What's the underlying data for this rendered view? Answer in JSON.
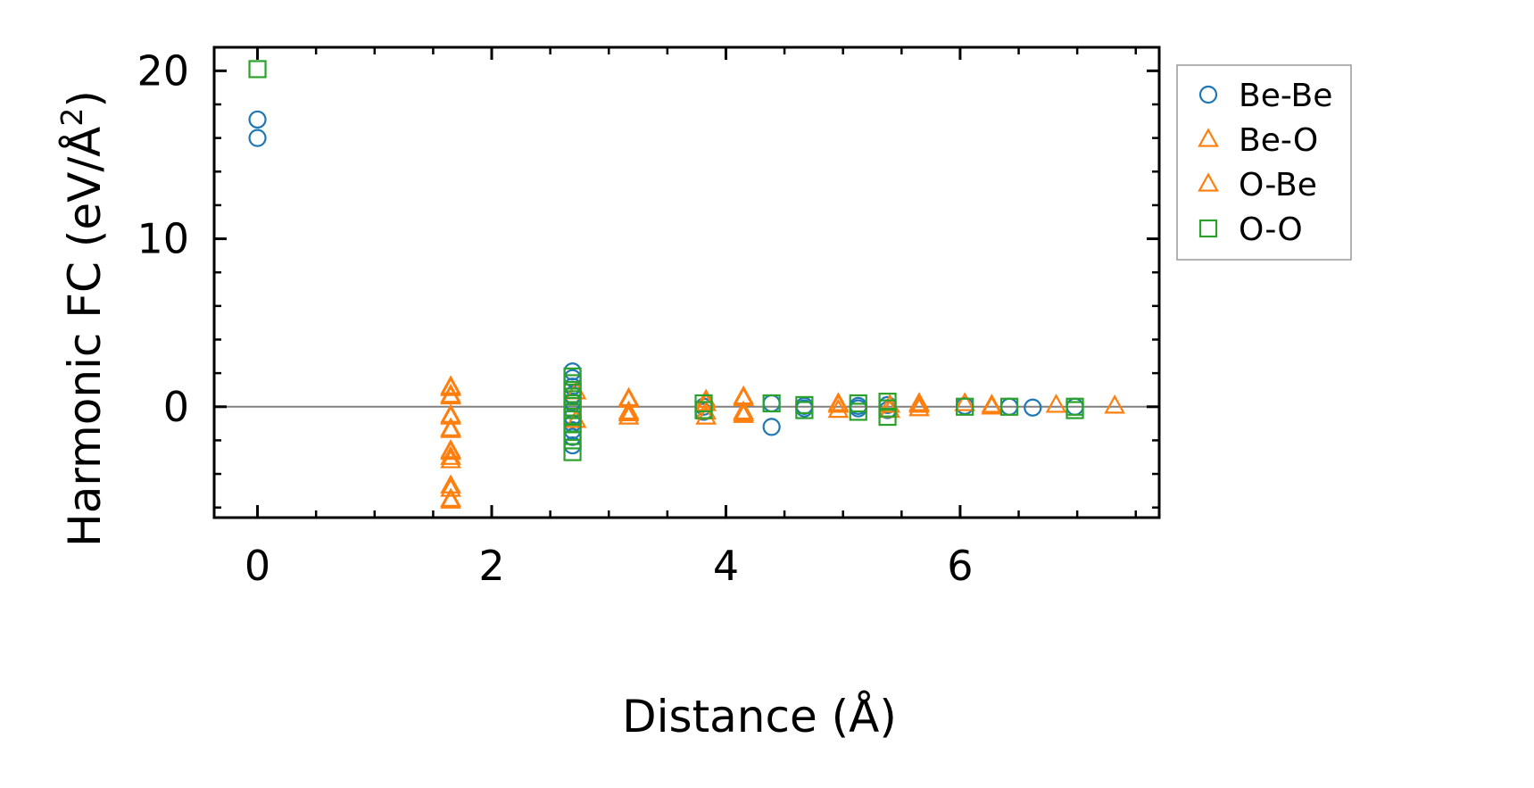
{
  "chart_data": {
    "type": "scatter",
    "title": "",
    "xlabel": "Distance (Å)",
    "ylabel": "Harmonic FC (eV/Å²)",
    "ylabel_parts": {
      "main": "Harmonic FC (eV/Å",
      "sup": "2",
      "close": ")"
    },
    "xlim": [
      -0.37,
      7.7
    ],
    "ylim": [
      -6.6,
      21.4
    ],
    "xticks": [
      0,
      2,
      4,
      6
    ],
    "yticks": [
      0,
      10,
      20
    ],
    "xtick_labels": [
      "0",
      "2",
      "4",
      "6"
    ],
    "ytick_labels": [
      "0",
      "10",
      "20"
    ],
    "x_minor_step": 0.5,
    "y_minor_step": 2,
    "zero_line": true,
    "grid": false,
    "legend_position": "outside-right-top",
    "series": [
      {
        "name": "Be-Be",
        "marker": "circle",
        "color": "#1f77b4",
        "points": [
          [
            0,
            16.0
          ],
          [
            0,
            17.1
          ],
          [
            2.69,
            2.1
          ],
          [
            2.69,
            1.7
          ],
          [
            2.69,
            1.2
          ],
          [
            2.69,
            0.7
          ],
          [
            2.69,
            0.3
          ],
          [
            2.69,
            -0.2
          ],
          [
            2.69,
            -0.6
          ],
          [
            2.69,
            -1.0
          ],
          [
            2.69,
            -1.4
          ],
          [
            2.69,
            -1.8
          ],
          [
            2.69,
            -2.3
          ],
          [
            3.81,
            0.0
          ],
          [
            3.81,
            -0.3
          ],
          [
            4.39,
            0.2
          ],
          [
            4.39,
            -1.2
          ],
          [
            4.67,
            0.05
          ],
          [
            4.67,
            -0.1
          ],
          [
            5.13,
            0.05
          ],
          [
            5.13,
            -0.1
          ],
          [
            5.38,
            0.1
          ],
          [
            5.38,
            -0.2
          ],
          [
            6.04,
            0.05
          ],
          [
            6.42,
            0.0
          ],
          [
            6.62,
            -0.05
          ],
          [
            6.98,
            0.0
          ]
        ]
      },
      {
        "name": "Be-O",
        "marker": "triangle",
        "color": "#ff7f0e",
        "points": [
          [
            1.65,
            1.1
          ],
          [
            1.65,
            0.6
          ],
          [
            1.65,
            -0.6
          ],
          [
            1.65,
            -1.3
          ],
          [
            1.65,
            -2.6
          ],
          [
            1.65,
            -3.2
          ],
          [
            1.65,
            -4.9
          ],
          [
            1.65,
            -5.6
          ],
          [
            2.72,
            0.9
          ],
          [
            2.72,
            -0.8
          ],
          [
            3.17,
            0.5
          ],
          [
            3.17,
            -0.3
          ],
          [
            3.17,
            -0.6
          ],
          [
            3.83,
            0.4
          ],
          [
            3.83,
            -0.3
          ],
          [
            3.83,
            -0.6
          ],
          [
            4.15,
            0.5
          ],
          [
            4.15,
            -0.3
          ],
          [
            4.15,
            -0.5
          ],
          [
            4.96,
            0.2
          ],
          [
            4.96,
            -0.2
          ],
          [
            5.4,
            0.1
          ],
          [
            5.4,
            -0.2
          ],
          [
            5.65,
            0.2
          ],
          [
            5.65,
            -0.1
          ],
          [
            6.04,
            0.2
          ],
          [
            6.27,
            0.1
          ],
          [
            6.82,
            0.1
          ],
          [
            7.32,
            0.05
          ]
        ]
      },
      {
        "name": "O-Be",
        "marker": "triangle",
        "color": "#ff7f0e",
        "points": [
          [
            1.65,
            1.2
          ],
          [
            1.65,
            0.7
          ],
          [
            1.65,
            -0.5
          ],
          [
            1.65,
            -1.4
          ],
          [
            1.65,
            -2.7
          ],
          [
            1.65,
            -3.0
          ],
          [
            1.65,
            -4.7
          ],
          [
            1.65,
            -5.5
          ],
          [
            3.17,
            0.4
          ],
          [
            3.17,
            -0.4
          ],
          [
            3.83,
            0.2
          ],
          [
            4.15,
            0.6
          ],
          [
            4.15,
            -0.4
          ],
          [
            4.96,
            0.1
          ],
          [
            5.65,
            0.1
          ],
          [
            6.27,
            0.0
          ]
        ]
      },
      {
        "name": "O-O",
        "marker": "square",
        "color": "#2ca02c",
        "points": [
          [
            0,
            20.1
          ],
          [
            2.69,
            1.8
          ],
          [
            2.69,
            1.4
          ],
          [
            2.69,
            1.0
          ],
          [
            2.69,
            0.6
          ],
          [
            2.69,
            0.2
          ],
          [
            2.69,
            -0.2
          ],
          [
            2.69,
            -0.6
          ],
          [
            2.69,
            -1.0
          ],
          [
            2.69,
            -1.5
          ],
          [
            2.69,
            -2.0
          ],
          [
            2.69,
            -2.7
          ],
          [
            3.81,
            0.2
          ],
          [
            3.81,
            -0.2
          ],
          [
            4.39,
            0.2
          ],
          [
            4.67,
            0.1
          ],
          [
            4.67,
            -0.2
          ],
          [
            5.13,
            0.2
          ],
          [
            5.13,
            -0.3
          ],
          [
            5.38,
            0.3
          ],
          [
            5.38,
            -0.1
          ],
          [
            5.38,
            -0.6
          ],
          [
            6.04,
            0.0
          ],
          [
            6.42,
            0.0
          ],
          [
            6.98,
            0.0
          ],
          [
            6.98,
            -0.2
          ]
        ]
      }
    ]
  }
}
